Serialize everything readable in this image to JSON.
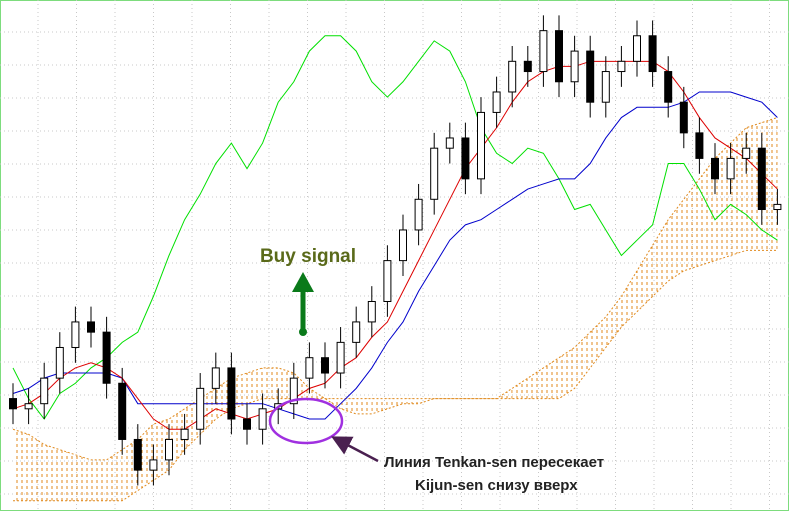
{
  "chart_data": {
    "type": "candlestick",
    "ylim": [
      0,
      100
    ],
    "candles": {
      "open": [
        22,
        20,
        21,
        26,
        32,
        37,
        35,
        25,
        14,
        8,
        10,
        14,
        16,
        24,
        28,
        18,
        16,
        20,
        21,
        26,
        30,
        27,
        33,
        37,
        41,
        49,
        55,
        61,
        71,
        73,
        65,
        78,
        82,
        88,
        86,
        94,
        84,
        90,
        80,
        86,
        88,
        93,
        86,
        80,
        74,
        69,
        65,
        69,
        71,
        59
      ],
      "high": [
        25,
        24,
        29,
        35,
        40,
        40,
        38,
        28,
        17,
        13,
        17,
        19,
        27,
        31,
        31,
        21,
        23,
        24,
        29,
        33,
        33,
        36,
        40,
        44,
        52,
        58,
        64,
        74,
        76,
        76,
        81,
        85,
        91,
        91,
        97,
        97,
        93,
        93,
        89,
        91,
        96,
        96,
        89,
        83,
        77,
        72,
        72,
        74,
        74,
        63
      ],
      "low": [
        17,
        17,
        18,
        23,
        29,
        32,
        22,
        11,
        5,
        5,
        7,
        11,
        13,
        21,
        15,
        13,
        13,
        17,
        18,
        23,
        24,
        24,
        30,
        34,
        38,
        46,
        52,
        58,
        68,
        62,
        62,
        75,
        79,
        83,
        83,
        81,
        81,
        77,
        77,
        83,
        85,
        83,
        77,
        71,
        66,
        62,
        62,
        66,
        56,
        56
      ],
      "close": [
        20,
        21,
        26,
        32,
        37,
        35,
        25,
        14,
        8,
        10,
        14,
        16,
        24,
        28,
        18,
        16,
        20,
        21,
        26,
        30,
        27,
        33,
        37,
        41,
        49,
        55,
        61,
        71,
        73,
        65,
        78,
        82,
        88,
        86,
        94,
        84,
        90,
        80,
        86,
        88,
        93,
        86,
        80,
        74,
        69,
        65,
        69,
        71,
        59,
        60
      ]
    },
    "lines": [
      {
        "color": "#00e000",
        "values": [
          28,
          22,
          18,
          23,
          25,
          28,
          30,
          33,
          35,
          42,
          50,
          57,
          62,
          68,
          72,
          67,
          72,
          80,
          84,
          90,
          93,
          93,
          90,
          84,
          81,
          84,
          88,
          92,
          90,
          84,
          75,
          70,
          68,
          71,
          70,
          65,
          59,
          60,
          55,
          50,
          53,
          56,
          68,
          68,
          63,
          57,
          60,
          58,
          55,
          53
        ]
      },
      {
        "color": "#0000cc",
        "values": [
          23,
          24,
          26,
          27,
          27,
          27,
          27,
          26,
          21,
          21,
          21,
          21,
          21,
          21,
          21,
          21,
          21,
          20,
          19,
          18,
          18,
          21,
          24,
          28,
          33,
          37,
          43,
          48,
          53,
          56,
          57,
          59,
          61,
          63,
          64,
          65,
          65,
          68,
          73,
          77,
          79,
          79,
          79,
          80,
          82,
          82,
          82,
          81,
          80,
          77
        ]
      },
      {
        "color": "#dd0000",
        "values": [
          20,
          21,
          23,
          26,
          28,
          29,
          28,
          26,
          22,
          18,
          16,
          16,
          18,
          20,
          19,
          18,
          19,
          20,
          22,
          24,
          25,
          28,
          30,
          34,
          37,
          43,
          49,
          55,
          61,
          67,
          71,
          75,
          80,
          84,
          86,
          87,
          87,
          88,
          88,
          88,
          88,
          88,
          86,
          82,
          77,
          73,
          71,
          69,
          66,
          63
        ]
      }
    ],
    "cloud": {
      "color": "#e08a1e",
      "span_a": [
        16,
        15,
        13,
        12,
        11,
        10,
        10,
        12,
        14,
        17,
        18,
        20,
        22,
        24,
        26,
        27,
        28,
        28,
        27,
        24,
        22,
        20,
        19,
        19,
        20,
        21,
        21,
        22,
        22,
        22,
        22,
        22,
        24,
        26,
        28,
        30,
        32,
        35,
        38,
        42,
        47,
        52,
        57,
        61,
        65,
        69,
        72,
        75,
        76,
        77
      ],
      "span_b": [
        2,
        2,
        2,
        2,
        2,
        2,
        2,
        2,
        4,
        6,
        8,
        12,
        15,
        18,
        20,
        21,
        22,
        22,
        22,
        22,
        22,
        22,
        22,
        22,
        22,
        22,
        22,
        22,
        22,
        22,
        22,
        22,
        22,
        22,
        22,
        22,
        24,
        28,
        32,
        36,
        39,
        42,
        45,
        47,
        48,
        49,
        50,
        51,
        51,
        51
      ]
    },
    "annotations": {
      "signal": "Buy signal",
      "cross": [
        "Линия Tenkan-sen пересекает",
        "Kijun-sen снизу вверх"
      ]
    }
  }
}
